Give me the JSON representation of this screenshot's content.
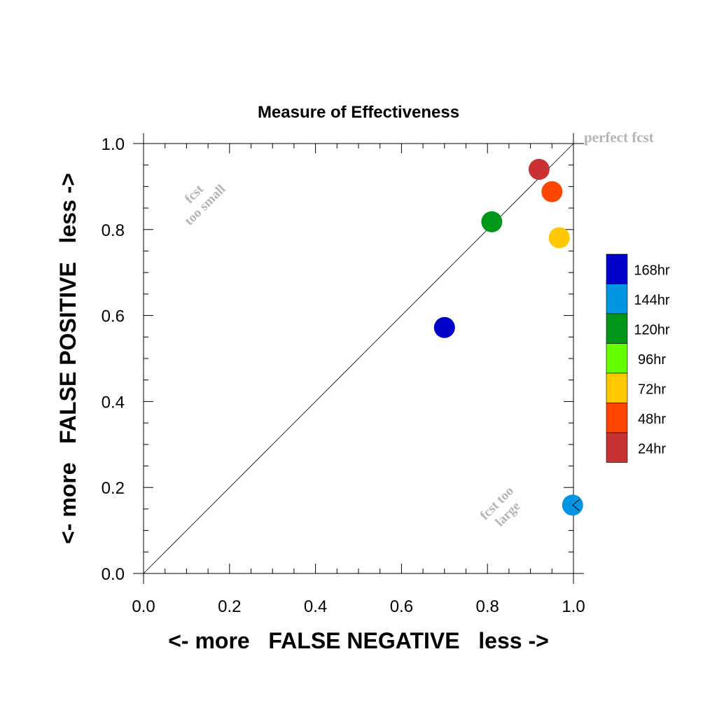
{
  "chart_data": {
    "type": "scatter",
    "title": "Measure of Effectiveness",
    "xlabel": "<- more   FALSE NEGATIVE   less ->",
    "ylabel": "<- more   FALSE POSITIVE   less ->",
    "xlim": [
      0.0,
      1.0
    ],
    "ylim": [
      0.0,
      1.0
    ],
    "xticks": [
      "0.0",
      "0.2",
      "0.4",
      "0.6",
      "0.8",
      "1.0"
    ],
    "yticks": [
      "0.0",
      "0.2",
      "0.4",
      "0.6",
      "0.8",
      "1.0"
    ],
    "grid": false,
    "diagonal_reference_line": true,
    "annotations": {
      "perfect": "perfect fcst",
      "too_small_line1": "fcst",
      "too_small_line2": "too small",
      "too_large_line1": "fcst too",
      "too_large_line2": "large"
    },
    "legend_position": "right",
    "legend": [
      {
        "label": "168hr",
        "color": "#0000c8"
      },
      {
        "label": "144hr",
        "color": "#0096e1"
      },
      {
        "label": "120hr",
        "color": "#009619"
      },
      {
        "label": "96hr",
        "color": "#64ff00"
      },
      {
        "label": "72hr",
        "color": "#ffc800"
      },
      {
        "label": "48hr",
        "color": "#ff4600"
      },
      {
        "label": "24hr",
        "color": "#c83232"
      }
    ],
    "series": [
      {
        "name": "24hr",
        "color": "#c83232",
        "x": 0.92,
        "y": 0.94
      },
      {
        "name": "48hr",
        "color": "#ff4600",
        "x": 0.95,
        "y": 0.888
      },
      {
        "name": "72hr",
        "color": "#ffc800",
        "x": 0.967,
        "y": 0.781
      },
      {
        "name": "120hr",
        "color": "#009619",
        "x": 0.81,
        "y": 0.818
      },
      {
        "name": "168hr",
        "color": "#0000c8",
        "x": 0.7,
        "y": 0.572
      },
      {
        "name": "144hr",
        "color": "#0096e1",
        "x": 0.998,
        "y": 0.159,
        "offscale_marker": true
      }
    ]
  }
}
